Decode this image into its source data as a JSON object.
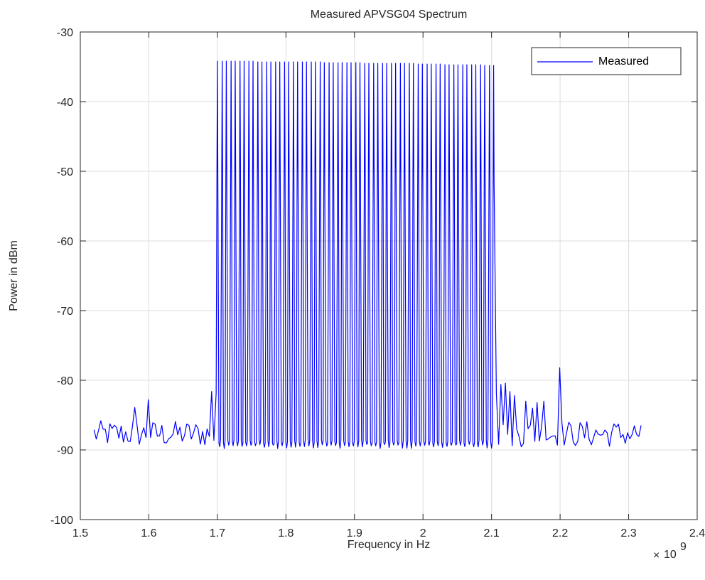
{
  "chart_data": {
    "type": "line",
    "title": "Measured APVSG04 Spectrum",
    "xlabel": "Frequency in Hz",
    "ylabel": "Power in dBm",
    "xlim": [
      1.5,
      2.4
    ],
    "ylim": [
      -100,
      -30
    ],
    "x_multiplier_base": "10",
    "x_multiplier_exponent": "9",
    "x_ticks": [
      "1.5",
      "1.6",
      "1.7",
      "1.8",
      "1.9",
      "2",
      "2.1",
      "2.2",
      "2.3",
      "2.4"
    ],
    "x_tick_values": [
      1.5,
      1.6,
      1.7,
      1.8,
      1.9,
      2.0,
      2.1,
      2.2,
      2.3,
      2.4
    ],
    "y_ticks": [
      "-30",
      "-40",
      "-50",
      "-60",
      "-70",
      "-80",
      "-90",
      "-100"
    ],
    "y_tick_values": [
      -30,
      -40,
      -50,
      -60,
      -70,
      -80,
      -90,
      -100
    ],
    "grid": true,
    "legend_position": "top-right",
    "colors": {
      "series": "#0000ff",
      "grid": "#dcdcdc",
      "axis": "#262626"
    },
    "series": [
      {
        "name": "Measured",
        "x_range": [
          1.52,
          2.32
        ],
        "comb_region": [
          1.7,
          2.105
        ],
        "comb_peaks": [
          [
            1.7,
            -34.2
          ],
          [
            1.707,
            -34.2
          ],
          [
            1.713,
            -34.2
          ],
          [
            1.72,
            -34.2
          ],
          [
            1.726,
            -34.2
          ],
          [
            1.733,
            -34.2
          ],
          [
            1.739,
            -34.2
          ],
          [
            1.746,
            -34.2
          ],
          [
            1.752,
            -34.2
          ],
          [
            1.759,
            -34.3
          ],
          [
            1.765,
            -34.3
          ],
          [
            1.772,
            -34.3
          ],
          [
            1.778,
            -34.3
          ],
          [
            1.785,
            -34.3
          ],
          [
            1.791,
            -34.3
          ],
          [
            1.798,
            -34.3
          ],
          [
            1.804,
            -34.3
          ],
          [
            1.811,
            -34.3
          ],
          [
            1.817,
            -34.3
          ],
          [
            1.824,
            -34.3
          ],
          [
            1.83,
            -34.3
          ],
          [
            1.837,
            -34.3
          ],
          [
            1.843,
            -34.3
          ],
          [
            1.85,
            -34.3
          ],
          [
            1.856,
            -34.4
          ],
          [
            1.863,
            -34.4
          ],
          [
            1.869,
            -34.4
          ],
          [
            1.876,
            -34.4
          ],
          [
            1.882,
            -34.4
          ],
          [
            1.889,
            -34.4
          ],
          [
            1.895,
            -34.4
          ],
          [
            1.902,
            -34.4
          ],
          [
            1.908,
            -34.4
          ],
          [
            1.915,
            -34.5
          ],
          [
            1.921,
            -34.5
          ],
          [
            1.928,
            -34.5
          ],
          [
            1.934,
            -34.5
          ],
          [
            1.941,
            -34.5
          ],
          [
            1.947,
            -34.5
          ],
          [
            1.954,
            -34.5
          ],
          [
            1.96,
            -34.5
          ],
          [
            1.967,
            -34.5
          ],
          [
            1.973,
            -34.5
          ],
          [
            1.98,
            -34.5
          ],
          [
            1.986,
            -34.5
          ],
          [
            1.993,
            -34.6
          ],
          [
            1.999,
            -34.6
          ],
          [
            2.006,
            -34.6
          ],
          [
            2.012,
            -34.6
          ],
          [
            2.019,
            -34.6
          ],
          [
            2.025,
            -34.6
          ],
          [
            2.032,
            -34.7
          ],
          [
            2.038,
            -34.7
          ],
          [
            2.045,
            -34.7
          ],
          [
            2.051,
            -34.7
          ],
          [
            2.058,
            -34.7
          ],
          [
            2.064,
            -34.7
          ],
          [
            2.071,
            -34.7
          ],
          [
            2.077,
            -34.7
          ],
          [
            2.084,
            -34.7
          ],
          [
            2.09,
            -34.8
          ],
          [
            2.097,
            -34.8
          ],
          [
            2.103,
            -34.8
          ]
        ],
        "comb_valley_level": [
          -88.5,
          -89.8
        ],
        "noise_floor_range": [
          -90,
          -85
        ],
        "spurs": [
          [
            1.58,
            -83.9
          ],
          [
            1.6,
            -82.8
          ],
          [
            1.69,
            -81.6
          ],
          [
            1.697,
            -81.8
          ],
          [
            2.107,
            -81.9
          ],
          [
            2.113,
            -80.6
          ],
          [
            2.12,
            -80.4
          ],
          [
            2.127,
            -81.6
          ],
          [
            2.135,
            -82.2
          ],
          [
            2.15,
            -83.0
          ],
          [
            2.16,
            -84.0
          ],
          [
            2.168,
            -83.2
          ],
          [
            2.175,
            -83.0
          ],
          [
            2.201,
            -78.2
          ]
        ]
      }
    ]
  }
}
